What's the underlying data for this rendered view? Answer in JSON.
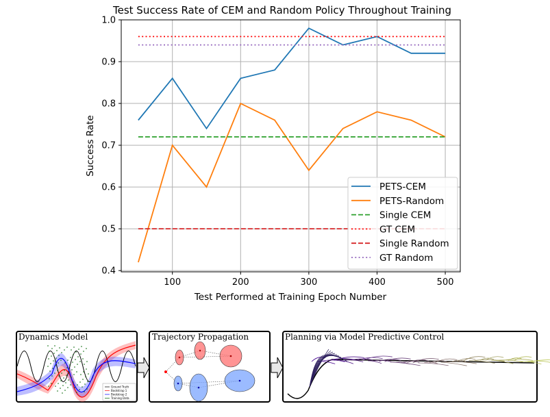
{
  "chart_data": {
    "type": "line",
    "title": "Test Success Rate of CEM and Random Policy Throughout Training",
    "xlabel": "Test Performed at Training Epoch Number",
    "ylabel": "Success Rate",
    "xlim": [
      25,
      522
    ],
    "ylim": [
      0.397,
      1.0
    ],
    "x_ticks": [
      "100",
      "200",
      "300",
      "400",
      "500"
    ],
    "y_ticks": [
      "0.4",
      "0.5",
      "0.6",
      "0.7",
      "0.8",
      "0.9",
      "1.0"
    ],
    "grid": true,
    "legend_position": "lower-right",
    "series": [
      {
        "name": "PETS-CEM",
        "color": "#1f77b4",
        "style": "solid",
        "x": [
          50,
          100,
          150,
          200,
          250,
          300,
          350,
          400,
          450,
          500
        ],
        "y": [
          0.76,
          0.86,
          0.74,
          0.86,
          0.88,
          0.98,
          0.94,
          0.96,
          0.92,
          0.92
        ]
      },
      {
        "name": "PETS-Random",
        "color": "#ff7f0e",
        "style": "solid",
        "x": [
          50,
          100,
          150,
          200,
          250,
          300,
          350,
          400,
          450,
          500
        ],
        "y": [
          0.42,
          0.7,
          0.6,
          0.8,
          0.76,
          0.64,
          0.74,
          0.78,
          0.76,
          0.72
        ]
      },
      {
        "name": "Single CEM",
        "color": "#2ca02c",
        "style": "dashed",
        "x": [
          50,
          500
        ],
        "y": [
          0.72,
          0.72
        ]
      },
      {
        "name": "GT CEM",
        "color": "#ff0000",
        "style": "dotted",
        "x": [
          50,
          500
        ],
        "y": [
          0.96,
          0.96
        ]
      },
      {
        "name": "Single Random",
        "color": "#d62728",
        "style": "dashed",
        "x": [
          50,
          500
        ],
        "y": [
          0.5,
          0.5
        ]
      },
      {
        "name": "GT Random",
        "color": "#9467bd",
        "style": "dotted",
        "x": [
          50,
          500
        ],
        "y": [
          0.94,
          0.94
        ]
      }
    ]
  },
  "panels": {
    "dynamics_title": "Dynamics Model",
    "trajectory_title": "Trajectory Propagation",
    "planning_title": "Planning via Model Predictive Control",
    "dynamics_legend": [
      "Ground Truth",
      "Bootstrap 1",
      "Bootstrap 2",
      "Training Data"
    ]
  }
}
